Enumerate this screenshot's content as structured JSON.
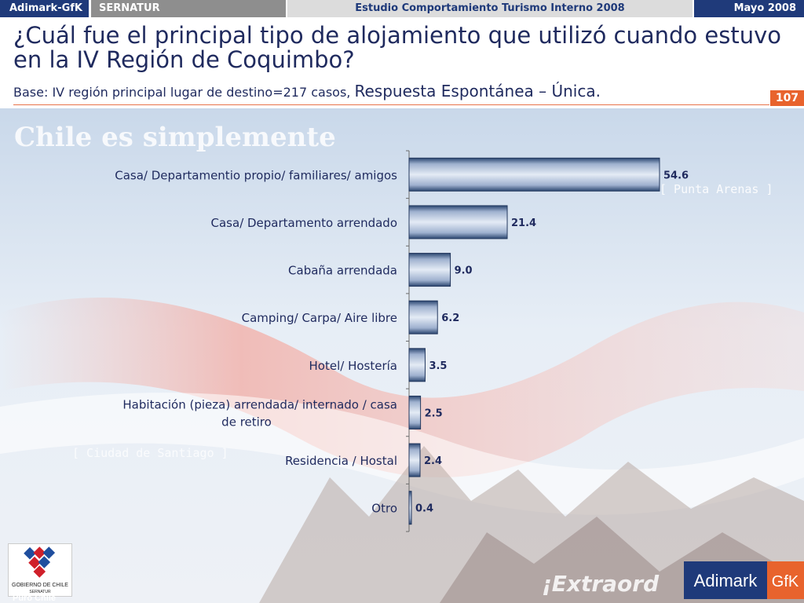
{
  "header": {
    "brand": "Adimark-GfK",
    "client": "SERNATUR",
    "study": "Estudio Comportamiento Turismo Interno 2008",
    "date": "Mayo 2008"
  },
  "slide": {
    "title": "¿Cuál fue el principal tipo de alojamiento que utilizó cuando estuvo en la IV Región de Coquimbo?",
    "base": "Base: IV región principal lugar de destino=217 casos,",
    "response_type": "Respuesta Espontánea – Única.",
    "page_number": "107"
  },
  "background": {
    "tagline": "Chile es simplemente",
    "city_north": "[ Punta Arenas ]",
    "city_center": "[ Ciudad de Santiago ]",
    "slogan": "¡Extraord"
  },
  "logos": {
    "gobierno": "GOBIERNO DE CHILE",
    "gobierno_sub": "SERNATUR",
    "puro_chile": "Puro Chile",
    "adimark": "Adimark",
    "gfk": "GfK"
  },
  "colors": {
    "navy": "#1f3a7a",
    "orange": "#e8632d",
    "bar_light": "#dfe6f2",
    "bar_dark": "#3a5683"
  },
  "chart_data": {
    "type": "bar",
    "orientation": "horizontal",
    "categories": [
      [
        "Casa/ Departamentio propio/ familiares/ amigos"
      ],
      [
        "Casa/ Departamento arrendado"
      ],
      [
        "Cabaña arrendada"
      ],
      [
        "Camping/ Carpa/ Aire libre"
      ],
      [
        "Hotel/ Hostería"
      ],
      [
        "Habitación (pieza) arrendada/ internado / casa",
        "de retiro"
      ],
      [
        "Residencia / Hostal"
      ],
      [
        "Otro"
      ]
    ],
    "values": [
      54.6,
      21.4,
      9.0,
      6.2,
      3.5,
      2.5,
      2.4,
      0.4
    ],
    "labels": [
      "54.6",
      "21.4",
      "9.0",
      "6.2",
      "3.5",
      "2.5",
      "2.4",
      "0.4"
    ],
    "xlim": [
      0,
      56
    ]
  }
}
